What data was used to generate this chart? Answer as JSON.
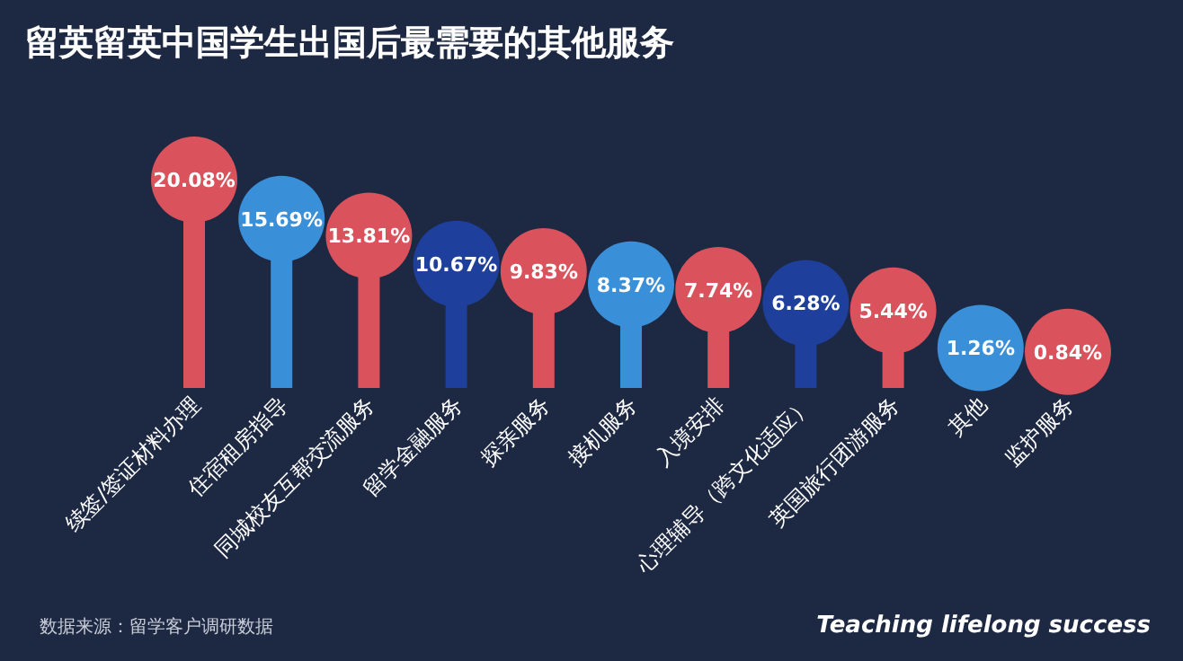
{
  "chart_data": {
    "type": "lollipop",
    "title": "留英留英中国学生出国后最需要的其他服务",
    "categories": [
      "续签/签证材料办理",
      "住宿租房指导",
      "同城校友互帮交流服务",
      "留学金融服务",
      "探亲服务",
      "接机服务",
      "入境安排",
      "心理辅导（跨文化适应）",
      "英国旅行团游服务",
      "其他",
      "监护服务"
    ],
    "values": [
      20.08,
      15.69,
      13.81,
      10.67,
      9.83,
      8.37,
      7.74,
      6.28,
      5.44,
      1.26,
      0.84
    ],
    "value_labels": [
      "20.08%",
      "15.69%",
      "13.81%",
      "10.67%",
      "9.83%",
      "8.37%",
      "7.74%",
      "6.28%",
      "5.44%",
      "1.26%",
      "0.84%"
    ],
    "colors": [
      "#d9525c",
      "#3a8fd9",
      "#d9525c",
      "#1e3f9c",
      "#d9525c",
      "#3a8fd9",
      "#d9525c",
      "#1e3f9c",
      "#d9525c",
      "#3a8fd9",
      "#d9525c"
    ],
    "annotations": [
      "数据来源：留学客户调研数据",
      "Teaching lifelong success"
    ]
  }
}
